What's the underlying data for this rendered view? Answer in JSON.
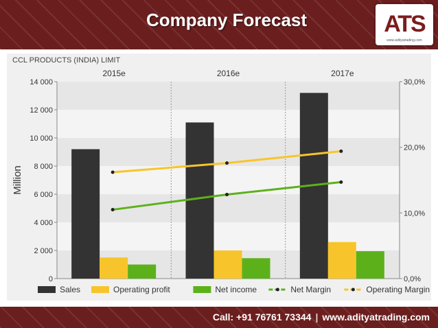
{
  "header": {
    "title": "Company Forecast"
  },
  "logo": {
    "text": "ATS",
    "tagline": "www.adityatrading.com"
  },
  "footer": {
    "call": "Call: +91 76761 73344",
    "website": "www.adityatrading.com"
  },
  "chart_data": {
    "type": "bar",
    "title": "CCL PRODUCTS (INDIA) LIMIT",
    "categories": [
      "2015e",
      "2016e",
      "2017e"
    ],
    "ylabel": "Million",
    "ylim": [
      0,
      14000
    ],
    "y_ticks": [
      "0",
      "2 000",
      "4 000",
      "6 000",
      "8 000",
      "10 000",
      "12 000",
      "14 000"
    ],
    "y2lim": [
      0,
      30
    ],
    "y2_ticks": [
      "0,0%",
      "10,0%",
      "20,0%",
      "30,0%"
    ],
    "series": [
      {
        "name": "Sales",
        "type": "bar",
        "axis": "left",
        "color": "#333333",
        "values": [
          9200,
          11100,
          13200
        ]
      },
      {
        "name": "Operating profit",
        "type": "bar",
        "axis": "left",
        "color": "#f7c52b",
        "values": [
          1500,
          2000,
          2600
        ]
      },
      {
        "name": "Net income",
        "type": "bar",
        "axis": "left",
        "color": "#5cb11b",
        "values": [
          1000,
          1450,
          1950
        ]
      },
      {
        "name": "Net Margin",
        "type": "line",
        "axis": "right",
        "color": "#5cb11b",
        "values": [
          10.5,
          12.8,
          14.7
        ]
      },
      {
        "name": "Operating Margin",
        "type": "line",
        "axis": "right",
        "color": "#f7c52b",
        "values": [
          16.2,
          17.6,
          19.4
        ]
      }
    ],
    "grid": "alternating bands",
    "legend": "bottom"
  }
}
